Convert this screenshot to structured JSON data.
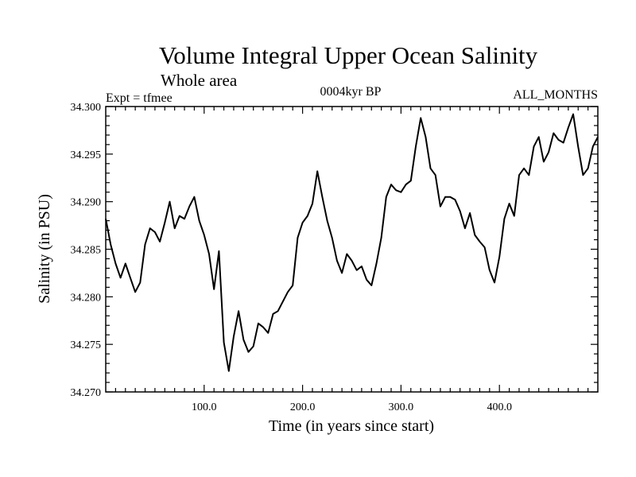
{
  "chart_data": {
    "type": "line",
    "title": "Volume Integral Upper Ocean Salinity",
    "subtitle": "Whole area",
    "experiment_label": "Expt = tfmee",
    "period_label": "0004kyr BP",
    "months_label": "ALL_MONTHS",
    "xlabel": "Time (in years since start)",
    "ylabel": "Salinity (in PSU)",
    "xlim": [
      0,
      500
    ],
    "ylim": [
      34.27,
      34.3
    ],
    "x_ticks": [
      100,
      200,
      300,
      400
    ],
    "x_tick_labels": [
      "100.0",
      "200.0",
      "300.0",
      "400.0"
    ],
    "y_ticks": [
      34.27,
      34.275,
      34.28,
      34.285,
      34.29,
      34.295,
      34.3
    ],
    "y_tick_labels": [
      "34.270",
      "34.275",
      "34.280",
      "34.285",
      "34.290",
      "34.295",
      "34.300"
    ],
    "grid": false,
    "line_color": "#000000",
    "series": [
      {
        "x": [
          0,
          5,
          10,
          15,
          20,
          25,
          30,
          35,
          40,
          45,
          50,
          55,
          60,
          65,
          70,
          75,
          80,
          85,
          90,
          95,
          100,
          105,
          110,
          115,
          120,
          125,
          130,
          135,
          140,
          145,
          150,
          155,
          160,
          165,
          170,
          175,
          180,
          185,
          190,
          195,
          200,
          205,
          210,
          215,
          220,
          225,
          230,
          235,
          240,
          245,
          250,
          255,
          260,
          265,
          270,
          275,
          280,
          285,
          290,
          295,
          300,
          305,
          310,
          315,
          320,
          325,
          330,
          335,
          340,
          345,
          350,
          355,
          360,
          365,
          370,
          375,
          380,
          385,
          390,
          395,
          400,
          405,
          410,
          415,
          420,
          425,
          430,
          435,
          440,
          445,
          450,
          455,
          460,
          465,
          470,
          475,
          480,
          485,
          490,
          495,
          500
        ],
        "y": [
          34.2882,
          34.2855,
          34.2835,
          34.282,
          34.2835,
          34.282,
          34.2805,
          34.2815,
          34.2855,
          34.2872,
          34.2868,
          34.2858,
          34.2878,
          34.29,
          34.2872,
          34.2885,
          34.2882,
          34.2895,
          34.2905,
          34.288,
          34.2865,
          34.2845,
          34.2808,
          34.2848,
          34.2752,
          34.2722,
          34.2758,
          34.2785,
          34.2755,
          34.2742,
          34.2748,
          34.2772,
          34.2768,
          34.2762,
          34.2782,
          34.2785,
          34.2795,
          34.2805,
          34.2812,
          34.2862,
          34.2878,
          34.2885,
          34.2898,
          34.2932,
          34.2905,
          34.288,
          34.2862,
          34.2838,
          34.2825,
          34.2845,
          34.2838,
          34.2828,
          34.2832,
          34.2818,
          34.2812,
          34.2835,
          34.2862,
          34.2905,
          34.2918,
          34.2912,
          34.291,
          34.2918,
          34.2922,
          34.2958,
          34.2988,
          34.2968,
          34.2935,
          34.2928,
          34.2895,
          34.2905,
          34.2905,
          34.2902,
          34.289,
          34.2872,
          34.2888,
          34.2865,
          34.2858,
          34.2852,
          34.2828,
          34.2815,
          34.2842,
          34.2882,
          34.2898,
          34.2885,
          34.2928,
          34.2935,
          34.2928,
          34.2958,
          34.2968,
          34.2942,
          34.2952,
          34.2972,
          34.2965,
          34.2962,
          34.2978,
          34.2992,
          34.2958,
          34.2928,
          34.2935,
          34.2958,
          34.2968
        ]
      }
    ]
  }
}
